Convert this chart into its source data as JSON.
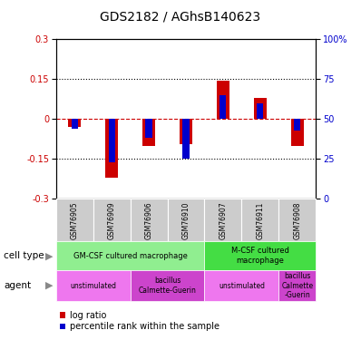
{
  "title": "GDS2182 / AGhsB140623",
  "samples": [
    "GSM76905",
    "GSM76909",
    "GSM76906",
    "GSM76910",
    "GSM76907",
    "GSM76911",
    "GSM76908"
  ],
  "log_ratio": [
    -0.03,
    -0.22,
    -0.1,
    -0.095,
    0.145,
    0.08,
    -0.1
  ],
  "percentile_rank": [
    44,
    23,
    38,
    25,
    65,
    60,
    43
  ],
  "ylim_left": [
    -0.3,
    0.3
  ],
  "ylim_right": [
    0,
    100
  ],
  "yticks_left": [
    -0.3,
    -0.15,
    0,
    0.15,
    0.3
  ],
  "yticks_right": [
    0,
    25,
    50,
    75,
    100
  ],
  "bar_width": 0.35,
  "red_color": "#cc0000",
  "blue_color": "#0000cc",
  "cell_type_groups": [
    {
      "label": "GM-CSF cultured macrophage",
      "span": [
        0,
        4
      ],
      "color": "#90ee90"
    },
    {
      "label": "M-CSF cultured\nmacrophage",
      "span": [
        4,
        7
      ],
      "color": "#44dd44"
    }
  ],
  "agent_groups": [
    {
      "label": "unstimulated",
      "span": [
        0,
        2
      ],
      "color": "#ee77ee"
    },
    {
      "label": "bacillus\nCalmette-Guerin",
      "span": [
        2,
        4
      ],
      "color": "#cc44cc"
    },
    {
      "label": "unstimulated",
      "span": [
        4,
        6
      ],
      "color": "#ee77ee"
    },
    {
      "label": "bacillus\nCalmette\n-Guerin",
      "span": [
        6,
        7
      ],
      "color": "#cc44cc"
    }
  ],
  "gsm_bg_color": "#cccccc",
  "zero_line_color": "#cc0000",
  "dotted_line_color": "#000000"
}
